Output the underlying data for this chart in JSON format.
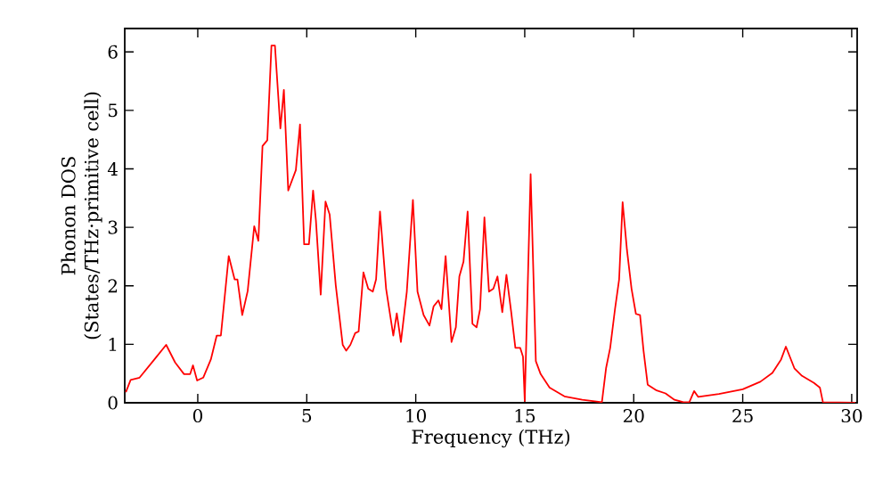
{
  "chart_data": {
    "type": "line",
    "xlabel": "Frequency (THz)",
    "ylabel": "Phonon DOS\n(States/THz·primitive cell)",
    "xlim": [
      -3.35,
      30.25
    ],
    "ylim": [
      0,
      6.4
    ],
    "xticks": [
      0,
      5,
      10,
      15,
      20,
      25,
      30
    ],
    "yticks": [
      0,
      1,
      2,
      3,
      4,
      5,
      6
    ],
    "grid": false,
    "marker": "none",
    "line_style": "solid",
    "series": [
      {
        "color": "#ff0000",
        "x": [
          -3.3,
          -3.08,
          -2.67,
          -1.99,
          -1.45,
          -1.04,
          -0.63,
          -0.35,
          -0.22,
          -0.03,
          0.25,
          0.6,
          0.87,
          1.06,
          1.42,
          1.69,
          1.82,
          2.04,
          2.29,
          2.59,
          2.78,
          2.97,
          3.19,
          3.38,
          3.54,
          3.79,
          3.95,
          4.15,
          4.5,
          4.69,
          4.88,
          5.1,
          5.29,
          5.42,
          5.64,
          5.86,
          6.05,
          6.33,
          6.65,
          6.81,
          7.0,
          7.22,
          7.38,
          7.6,
          7.82,
          8.03,
          8.18,
          8.36,
          8.64,
          8.97,
          9.13,
          9.32,
          9.59,
          9.87,
          10.08,
          10.36,
          10.63,
          10.82,
          11.04,
          11.18,
          11.37,
          11.64,
          11.84,
          12.0,
          12.19,
          12.38,
          12.6,
          12.79,
          12.95,
          13.15,
          13.36,
          13.56,
          13.75,
          13.97,
          14.16,
          14.38,
          14.57,
          14.79,
          14.92,
          15.0,
          15.27,
          15.51,
          15.73,
          16.14,
          16.82,
          17.64,
          18.54,
          18.73,
          18.92,
          19.14,
          19.33,
          19.49,
          19.69,
          19.9,
          20.1,
          20.29,
          20.45,
          20.64,
          21.05,
          21.46,
          21.87,
          22.28,
          22.55,
          22.77,
          22.96,
          23.91,
          25.0,
          25.81,
          26.36,
          26.76,
          26.98,
          27.37,
          27.72,
          28.27,
          28.54,
          28.68,
          30.17
        ],
        "values": [
          0.18,
          0.39,
          0.43,
          0.74,
          0.99,
          0.69,
          0.49,
          0.49,
          0.64,
          0.38,
          0.43,
          0.74,
          1.15,
          1.15,
          2.51,
          2.11,
          2.11,
          1.5,
          1.91,
          3.02,
          2.77,
          4.39,
          4.49,
          6.11,
          6.11,
          4.69,
          5.35,
          3.63,
          3.98,
          4.76,
          2.71,
          2.71,
          3.63,
          3.12,
          1.85,
          3.44,
          3.22,
          2.01,
          0.99,
          0.89,
          0.99,
          1.19,
          1.22,
          2.23,
          1.95,
          1.9,
          2.11,
          3.27,
          1.95,
          1.15,
          1.53,
          1.04,
          1.9,
          3.47,
          1.9,
          1.5,
          1.32,
          1.65,
          1.75,
          1.6,
          2.51,
          1.04,
          1.29,
          2.16,
          2.41,
          3.27,
          1.35,
          1.29,
          1.6,
          3.17,
          1.9,
          1.95,
          2.16,
          1.55,
          2.19,
          1.55,
          0.94,
          0.94,
          0.79,
          0.03,
          3.91,
          0.71,
          0.49,
          0.26,
          0.11,
          0.05,
          0.01,
          0.59,
          0.94,
          1.6,
          2.11,
          3.43,
          2.61,
          1.95,
          1.52,
          1.5,
          0.89,
          0.31,
          0.21,
          0.16,
          0.05,
          0.01,
          0.01,
          0.2,
          0.1,
          0.15,
          0.23,
          0.36,
          0.51,
          0.74,
          0.96,
          0.59,
          0.46,
          0.34,
          0.26,
          0.01,
          0.0
        ]
      }
    ]
  }
}
